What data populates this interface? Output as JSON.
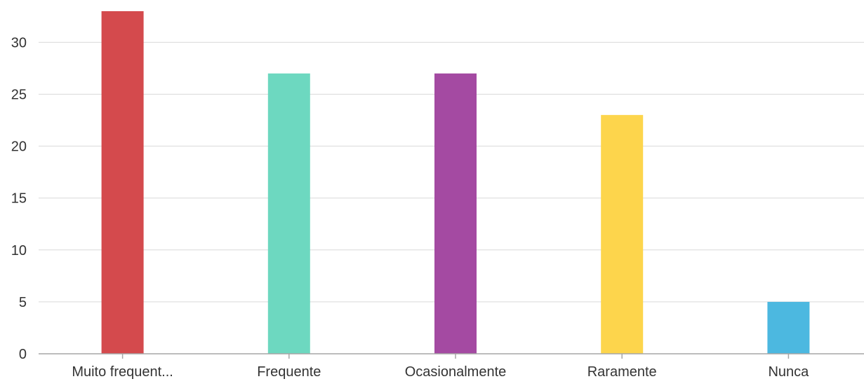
{
  "chart_data": {
    "type": "bar",
    "title": "",
    "xlabel": "",
    "ylabel": "",
    "categories": [
      "Muito frequent...",
      "Frequente",
      "Ocasionalmente",
      "Raramente",
      "Nunca"
    ],
    "values": [
      33,
      27,
      27,
      23,
      5
    ],
    "colors": [
      "#d44a4d",
      "#6dd8c0",
      "#a44aa2",
      "#fdd54c",
      "#4cb8e0"
    ],
    "ylim": [
      0,
      33
    ],
    "yticks": [
      0,
      5,
      10,
      15,
      20,
      25,
      30
    ],
    "grid": true,
    "legend": "none"
  }
}
